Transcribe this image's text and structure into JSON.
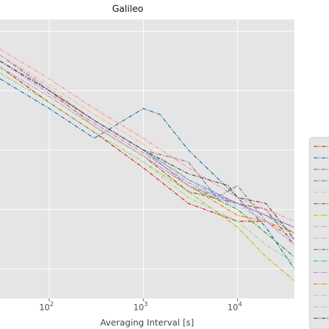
{
  "chart_data": {
    "type": "line",
    "title": "Galileo",
    "xlabel": "Averaging Interval [s]",
    "ylabel": "",
    "x_scale": "log",
    "xlim": [
      30,
      40000
    ],
    "ylim_log": [
      -14.5,
      -9.8
    ],
    "x_ticks": [
      {
        "value": 100,
        "label": "10",
        "exp": "2"
      },
      {
        "value": 1000,
        "label": "10",
        "exp": "3"
      },
      {
        "value": 10000,
        "label": "10",
        "exp": "4"
      }
    ],
    "y_grid_log": [
      -10,
      -11,
      -12,
      -13,
      -14
    ],
    "grid": true,
    "background": "#e5e5e5",
    "legend": {
      "placement": "right",
      "partially_visible": true
    },
    "series": [
      {
        "color": "#d62728",
        "dash": "dashdot",
        "x": [
          30,
          100,
          300,
          1000,
          3000,
          10000,
          20000,
          40000
        ],
        "y_log": [
          -10.6,
          -11.2,
          -11.7,
          -12.3,
          -12.9,
          -13.2,
          -13.2,
          -13.5
        ]
      },
      {
        "color": "#1f77b4",
        "dash": "dashdot",
        "x": [
          30,
          100,
          300,
          1000,
          1500,
          3000,
          10000,
          20000,
          40000
        ],
        "y_log": [
          -10.8,
          -11.3,
          -11.8,
          -11.3,
          -11.4,
          -12.0,
          -12.8,
          -13.3,
          -14.0
        ]
      },
      {
        "color": "#9467bd",
        "dash": "dashdot",
        "x": [
          30,
          100,
          300,
          1000,
          3000,
          10000,
          20000,
          40000
        ],
        "y_log": [
          -10.4,
          -11.0,
          -11.5,
          -12.0,
          -12.6,
          -12.9,
          -13.1,
          -13.3
        ]
      },
      {
        "color": "#7f7f7f",
        "dash": "dashdot",
        "x": [
          30,
          100,
          300,
          1000,
          3000,
          6000,
          10000,
          20000,
          40000
        ],
        "y_log": [
          -10.5,
          -11.0,
          -11.5,
          -12.0,
          -12.2,
          -12.8,
          -12.6,
          -13.2,
          -13.6
        ]
      },
      {
        "color": "#ffbb78",
        "dash": "dashdot",
        "x": [
          30,
          100,
          300,
          1000,
          3000,
          10000,
          20000,
          40000
        ],
        "y_log": [
          -10.4,
          -10.9,
          -11.4,
          -11.9,
          -12.5,
          -12.9,
          -13.2,
          -13.4
        ]
      },
      {
        "color": "#8c564b",
        "dash": "dashdot",
        "x": [
          30,
          100,
          300,
          1000,
          3000,
          10000,
          20000,
          40000
        ],
        "y_log": [
          -10.6,
          -11.1,
          -11.6,
          -12.1,
          -12.7,
          -12.9,
          -13.0,
          -13.6
        ]
      },
      {
        "color": "#bcbd22",
        "dash": "dashdot",
        "x": [
          30,
          100,
          300,
          1000,
          3000,
          10000,
          20000,
          40000
        ],
        "y_log": [
          -10.7,
          -11.2,
          -11.7,
          -12.2,
          -12.7,
          -13.3,
          -13.8,
          -14.2
        ]
      },
      {
        "color": "#ff9896",
        "dash": "dashdot",
        "x": [
          30,
          100,
          300,
          1000,
          3000,
          10000,
          20000,
          40000
        ],
        "y_log": [
          -10.3,
          -10.8,
          -11.3,
          -11.8,
          -12.3,
          -12.8,
          -13.0,
          -13.2
        ]
      },
      {
        "color": "#c5b0d5",
        "dash": "dashdot",
        "x": [
          30,
          100,
          300,
          1000,
          3000,
          10000,
          20000,
          40000
        ],
        "y_log": [
          -10.4,
          -10.95,
          -11.5,
          -12.0,
          -12.5,
          -12.9,
          -13.2,
          -13.6
        ]
      },
      {
        "color": "#2ca02c",
        "dash": "dashdot",
        "x": [
          30,
          100,
          300,
          1000,
          3000,
          10000,
          20000,
          40000
        ],
        "y_log": [
          -10.6,
          -11.1,
          -11.6,
          -12.1,
          -12.6,
          -13.0,
          -13.4,
          -13.8
        ]
      },
      {
        "color": "#17becf",
        "dash": "dashdot",
        "x": [
          30,
          100,
          300,
          1000,
          3000,
          10000,
          20000,
          40000
        ],
        "y_log": [
          -10.5,
          -11.0,
          -11.5,
          -12.0,
          -12.5,
          -12.9,
          -13.1,
          -13.4
        ]
      },
      {
        "color": "#e377c2",
        "dash": "dashdot",
        "x": [
          30,
          100,
          300,
          1000,
          3000,
          10000,
          20000,
          40000
        ],
        "y_log": [
          -10.5,
          -11.05,
          -11.55,
          -12.05,
          -12.55,
          -12.9,
          -13.1,
          -13.3
        ]
      },
      {
        "color": "#ff7f0e",
        "dash": "dashdot",
        "x": [
          30,
          100,
          300,
          1000,
          3000,
          10000,
          20000,
          40000
        ],
        "y_log": [
          -10.5,
          -11.0,
          -11.6,
          -12.1,
          -12.6,
          -13.1,
          -13.2,
          -13.4
        ]
      },
      {
        "color": "#aec7e8",
        "dash": "dashdot",
        "x": [
          30,
          100,
          300,
          1000,
          3000,
          10000,
          20000,
          40000
        ],
        "y_log": [
          -10.6,
          -11.1,
          -11.6,
          -12.1,
          -12.6,
          -12.95,
          -13.2,
          -13.5
        ]
      },
      {
        "color": "#98df8a",
        "dash": "dashdot",
        "x": [
          30,
          100,
          300,
          1000,
          3000,
          10000,
          20000,
          40000
        ],
        "y_log": [
          -10.7,
          -11.2,
          -11.7,
          -12.2,
          -12.8,
          -13.2,
          -13.6,
          -13.9
        ]
      },
      {
        "color": "#555555",
        "dash": "dashdot",
        "x": [
          30,
          100,
          300,
          1000,
          3000,
          8000,
          10000,
          20000,
          40000
        ],
        "y_log": [
          -10.5,
          -11.0,
          -11.5,
          -12.0,
          -12.4,
          -12.6,
          -12.8,
          -12.9,
          -13.5
        ]
      }
    ]
  }
}
